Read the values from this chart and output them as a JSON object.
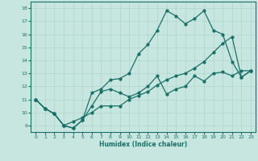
{
  "xlabel": "Humidex (Indice chaleur)",
  "xlim": [
    -0.5,
    23.5
  ],
  "ylim": [
    8.5,
    18.5
  ],
  "xticks": [
    0,
    1,
    2,
    3,
    4,
    5,
    6,
    7,
    8,
    9,
    10,
    11,
    12,
    13,
    14,
    15,
    16,
    17,
    18,
    19,
    20,
    21,
    22,
    23
  ],
  "yticks": [
    9,
    10,
    11,
    12,
    13,
    14,
    15,
    16,
    17,
    18
  ],
  "bg_color": "#c8e6e0",
  "grid_color": "#afd4cc",
  "line_color": "#1a7068",
  "line1_x": [
    0,
    1,
    2,
    3,
    4,
    5,
    6,
    7,
    8,
    9,
    10,
    11,
    12,
    13,
    14,
    15,
    16,
    17,
    18,
    19,
    20,
    21,
    22,
    23
  ],
  "line1_y": [
    11.0,
    10.3,
    9.9,
    9.0,
    8.8,
    9.4,
    11.5,
    11.8,
    12.5,
    12.6,
    13.0,
    14.5,
    15.2,
    16.3,
    17.8,
    17.4,
    16.8,
    17.2,
    17.8,
    16.3,
    16.0,
    13.9,
    12.7,
    13.2
  ],
  "line2_x": [
    0,
    1,
    2,
    3,
    4,
    5,
    6,
    7,
    8,
    9,
    10,
    11,
    12,
    13,
    14,
    15,
    16,
    17,
    18,
    19,
    20,
    21,
    22,
    23
  ],
  "line2_y": [
    11.0,
    10.3,
    9.9,
    9.0,
    8.8,
    9.4,
    10.5,
    11.6,
    11.8,
    11.5,
    11.2,
    11.5,
    12.0,
    12.8,
    11.4,
    11.8,
    12.0,
    12.8,
    12.4,
    13.0,
    13.1,
    12.8,
    13.2,
    13.2
  ],
  "line3_x": [
    0,
    1,
    2,
    3,
    4,
    5,
    6,
    7,
    8,
    9,
    10,
    11,
    12,
    13,
    14,
    15,
    16,
    17,
    18,
    19,
    20,
    21,
    22,
    23
  ],
  "line3_y": [
    11.0,
    10.3,
    9.9,
    9.0,
    9.3,
    9.6,
    10.0,
    10.5,
    10.5,
    10.5,
    11.0,
    11.3,
    11.6,
    12.1,
    12.5,
    12.8,
    13.0,
    13.4,
    13.9,
    14.6,
    15.3,
    15.8,
    12.7,
    13.2
  ]
}
